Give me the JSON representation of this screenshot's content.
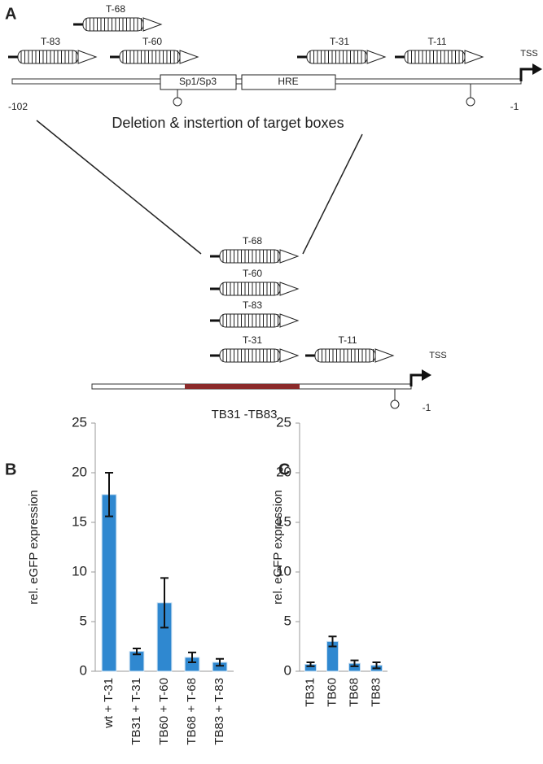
{
  "panel_a": {
    "label": "A",
    "top_boxes": [
      "T-68",
      "T-83",
      "T-60",
      "T-31",
      "T-11"
    ],
    "elements": [
      "Sp1/Sp3",
      "HRE"
    ],
    "tss": "TSS",
    "start": -102,
    "end": -1,
    "caption": "Deletion & instertion of target boxes",
    "bottom_boxes": [
      "T-68",
      "T-60",
      "T-83",
      "T-31",
      "T-11"
    ],
    "tss_bottom": "TSS",
    "end_bottom": -1,
    "construct": "TB31 -TB83"
  },
  "chart_data": [
    {
      "type": "bar",
      "panel_label": "B",
      "ylabel": "rel. eGFP expression",
      "categories": [
        "wt + T-31",
        "TB31 + T-31",
        "TB60 + T-60",
        "TB68 + T-68",
        "TB83 + T-83"
      ],
      "values": [
        17.8,
        2.0,
        6.9,
        1.4,
        0.9
      ],
      "errors": [
        2.2,
        0.3,
        2.5,
        0.5,
        0.35
      ],
      "color": "#2f88d0",
      "ylim": [
        0,
        25
      ],
      "yticks": [
        0,
        5,
        10,
        15,
        20,
        25
      ]
    },
    {
      "type": "bar",
      "panel_label": "C",
      "ylabel": "rel. eGFP expression",
      "categories": [
        "TB31",
        "TB60",
        "TB68",
        "TB83"
      ],
      "values": [
        0.7,
        3.0,
        0.8,
        0.6
      ],
      "errors": [
        0.2,
        0.5,
        0.3,
        0.3
      ],
      "color": "#2f88d0",
      "ylim": [
        0,
        25
      ],
      "yticks": [
        0,
        5,
        10,
        15,
        20,
        25
      ]
    }
  ]
}
